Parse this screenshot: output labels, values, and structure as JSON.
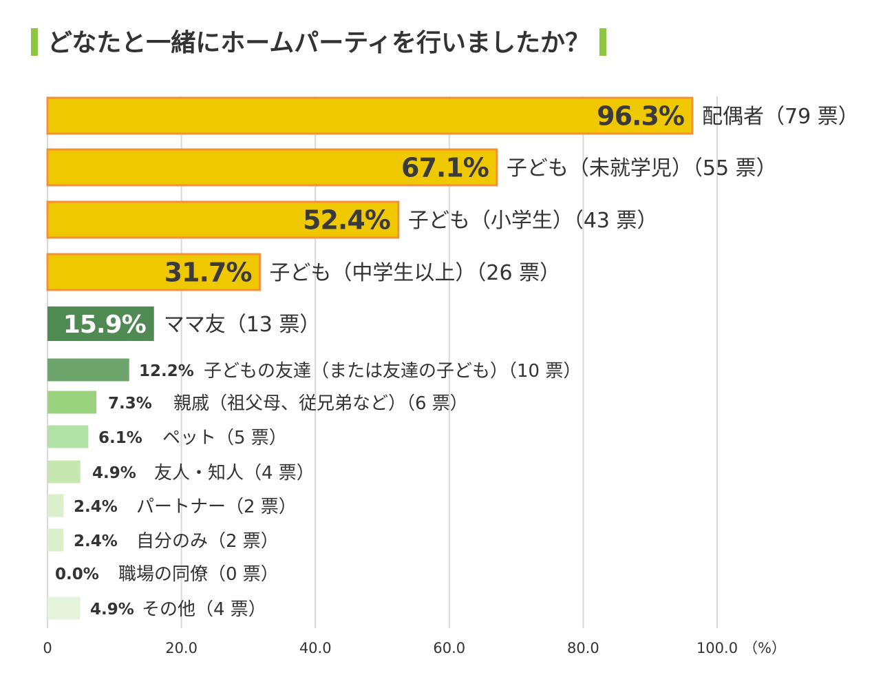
{
  "title": "どなたと一緒にホームパーティを行いましたか？",
  "colors": {
    "title_marker": "#8ec63f",
    "gridline": "#d8d8d8",
    "axis_text": "#333333",
    "label_text": "#333333"
  },
  "chart_data": {
    "type": "bar",
    "orientation": "horizontal",
    "title": "どなたと一緒にホームパーティを行いましたか？",
    "xlim": [
      0,
      100
    ],
    "x_ticks": [
      0,
      20,
      40,
      60,
      80,
      100
    ],
    "x_tick_labels": [
      "0",
      "20.0",
      "40.0",
      "60.0",
      "80.0",
      "100.0"
    ],
    "x_unit": "（%）",
    "grid": true,
    "categories": [
      {
        "label": "配偶者（79 票）",
        "value": 96.3,
        "value_label": "96.3%",
        "tier": "top",
        "color": "#f0c800",
        "stroke": "#f2903c",
        "text_color": "#3a3a3a"
      },
      {
        "label": "子ども（未就学児）（55 票）",
        "value": 67.1,
        "value_label": "67.1%",
        "tier": "top",
        "color": "#f0c800",
        "stroke": "#f2903c",
        "text_color": "#3a3a3a"
      },
      {
        "label": "子ども（小学生）（43 票）",
        "value": 52.4,
        "value_label": "52.4%",
        "tier": "top",
        "color": "#f0c800",
        "stroke": "#f2903c",
        "text_color": "#3a3a3a"
      },
      {
        "label": "子ども（中学生以上）（26 票）",
        "value": 31.7,
        "value_label": "31.7%",
        "tier": "top",
        "color": "#f0c800",
        "stroke": "#f2903c",
        "text_color": "#3a3a3a"
      },
      {
        "label": "ママ友（13 票）",
        "value": 15.9,
        "value_label": "15.9%",
        "tier": "mid",
        "color": "#4e8a52",
        "stroke": "",
        "text_color": "#ffffff"
      },
      {
        "label": "子どもの友達（または友達の子ども）（10 票）",
        "value": 12.2,
        "value_label": "12.2%",
        "tier": "small",
        "color": "#6ea56c",
        "stroke": "",
        "text_color": "#333333"
      },
      {
        "label": "親戚（祖父母、従兄弟など）（6 票）",
        "value": 7.3,
        "value_label": "7.3%",
        "tier": "small",
        "color": "#9ad27e",
        "stroke": "",
        "text_color": "#333333"
      },
      {
        "label": "ペット（5 票）",
        "value": 6.1,
        "value_label": "6.1%",
        "tier": "small",
        "color": "#b3e2a6",
        "stroke": "",
        "text_color": "#333333"
      },
      {
        "label": "友人・知人（4 票）",
        "value": 4.9,
        "value_label": "4.9%",
        "tier": "small",
        "color": "#c6e8b0",
        "stroke": "",
        "text_color": "#333333"
      },
      {
        "label": "パートナー（2 票）",
        "value": 2.4,
        "value_label": "2.4%",
        "tier": "small",
        "color": "#dcefcd",
        "stroke": "",
        "text_color": "#333333"
      },
      {
        "label": "自分のみ（2 票）",
        "value": 2.4,
        "value_label": "2.4%",
        "tier": "small",
        "color": "#dcefcd",
        "stroke": "",
        "text_color": "#333333"
      },
      {
        "label": "職場の同僚（0 票）",
        "value": 0.0,
        "value_label": "0.0%",
        "tier": "small",
        "color": "#e6f3dc",
        "stroke": "",
        "text_color": "#333333"
      },
      {
        "label": "その他（4 票）",
        "value": 4.9,
        "value_label": "4.9%",
        "tier": "small",
        "color": "#e6f3dc",
        "stroke": "",
        "text_color": "#333333"
      }
    ]
  }
}
